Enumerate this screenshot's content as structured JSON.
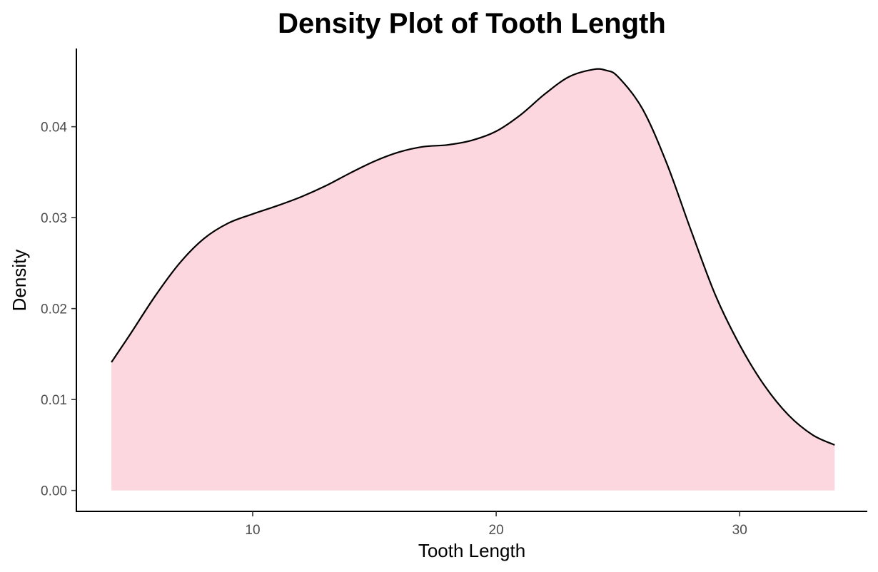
{
  "chart_data": {
    "type": "area",
    "title": "Density Plot of Tooth Length",
    "xlabel": "Tooth Length",
    "ylabel": "Density",
    "xlim": [
      2.76,
      35.24
    ],
    "ylim": [
      -0.0023,
      0.0486
    ],
    "x_ticks": [
      10,
      20,
      30
    ],
    "x_tick_labels": [
      "10",
      "20",
      "30"
    ],
    "y_ticks": [
      0.0,
      0.01,
      0.02,
      0.03,
      0.04
    ],
    "y_tick_labels": [
      "0.00",
      "0.01",
      "0.02",
      "0.03",
      "0.04"
    ],
    "grid": false,
    "legend": "none",
    "fill_color": "#fcd7df",
    "line_color": "#000000",
    "series": [
      {
        "x": [
          4.2,
          5.0,
          6.0,
          7.0,
          8.0,
          9.0,
          10.0,
          11.0,
          12.0,
          13.0,
          14.0,
          15.0,
          16.0,
          17.0,
          18.0,
          19.0,
          20.0,
          21.0,
          22.0,
          23.0,
          24.0,
          24.5,
          25.0,
          26.0,
          27.0,
          28.0,
          29.0,
          30.0,
          31.0,
          32.0,
          33.0,
          33.9
        ],
        "values": [
          0.0141,
          0.0173,
          0.0214,
          0.025,
          0.0277,
          0.0294,
          0.0304,
          0.0313,
          0.0323,
          0.0335,
          0.0349,
          0.0362,
          0.0372,
          0.0378,
          0.038,
          0.0385,
          0.0395,
          0.0413,
          0.0436,
          0.0455,
          0.0463,
          0.0462,
          0.0455,
          0.042,
          0.036,
          0.0286,
          0.0215,
          0.016,
          0.0116,
          0.0083,
          0.0061,
          0.005
        ]
      }
    ]
  }
}
